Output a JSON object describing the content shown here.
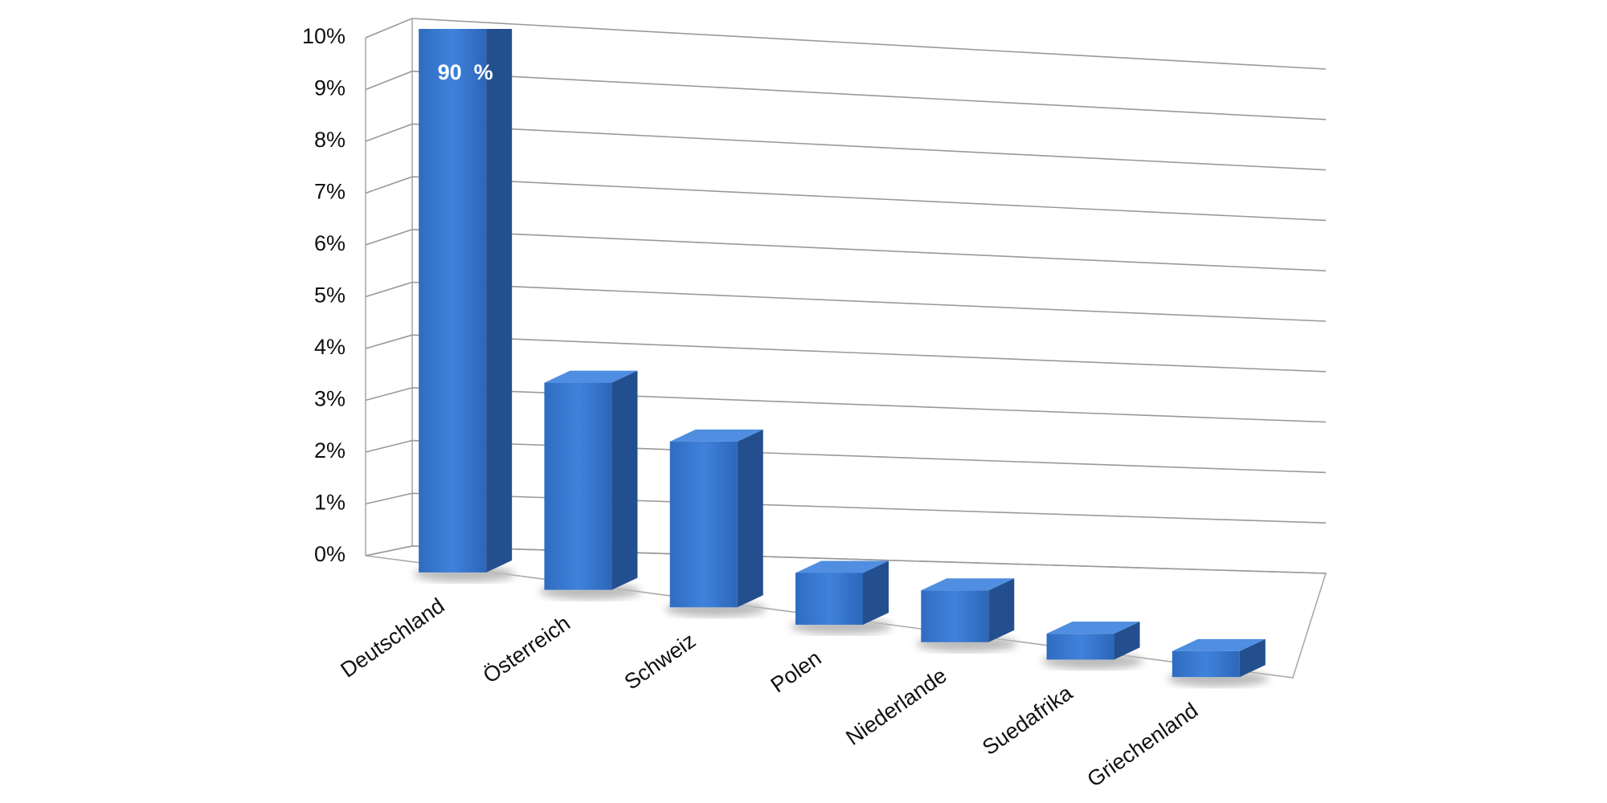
{
  "chart_data": {
    "type": "bar3d",
    "categories": [
      "Deutschland",
      "Österreich",
      "Schweiz",
      "Polen",
      "Niederlande",
      "Suedafrika",
      "Griechenland"
    ],
    "values": [
      90,
      4.0,
      3.2,
      1.0,
      1.0,
      0.5,
      0.5
    ],
    "value_labels": [
      "90  %",
      null,
      null,
      null,
      null,
      null,
      null
    ],
    "color": "#3a7bd5",
    "ylim": [
      0,
      10
    ],
    "yticks": [
      {
        "value": 0,
        "label": "0%"
      },
      {
        "value": 1,
        "label": "1%"
      },
      {
        "value": 2,
        "label": "2%"
      },
      {
        "value": 3,
        "label": "3%"
      },
      {
        "value": 4,
        "label": "4%"
      },
      {
        "value": 5,
        "label": "5%"
      },
      {
        "value": 6,
        "label": "6%"
      },
      {
        "value": 7,
        "label": "7%"
      },
      {
        "value": 8,
        "label": "8%"
      },
      {
        "value": 9,
        "label": "9%"
      },
      {
        "value": 10,
        "label": "10%"
      }
    ],
    "grid": true
  }
}
